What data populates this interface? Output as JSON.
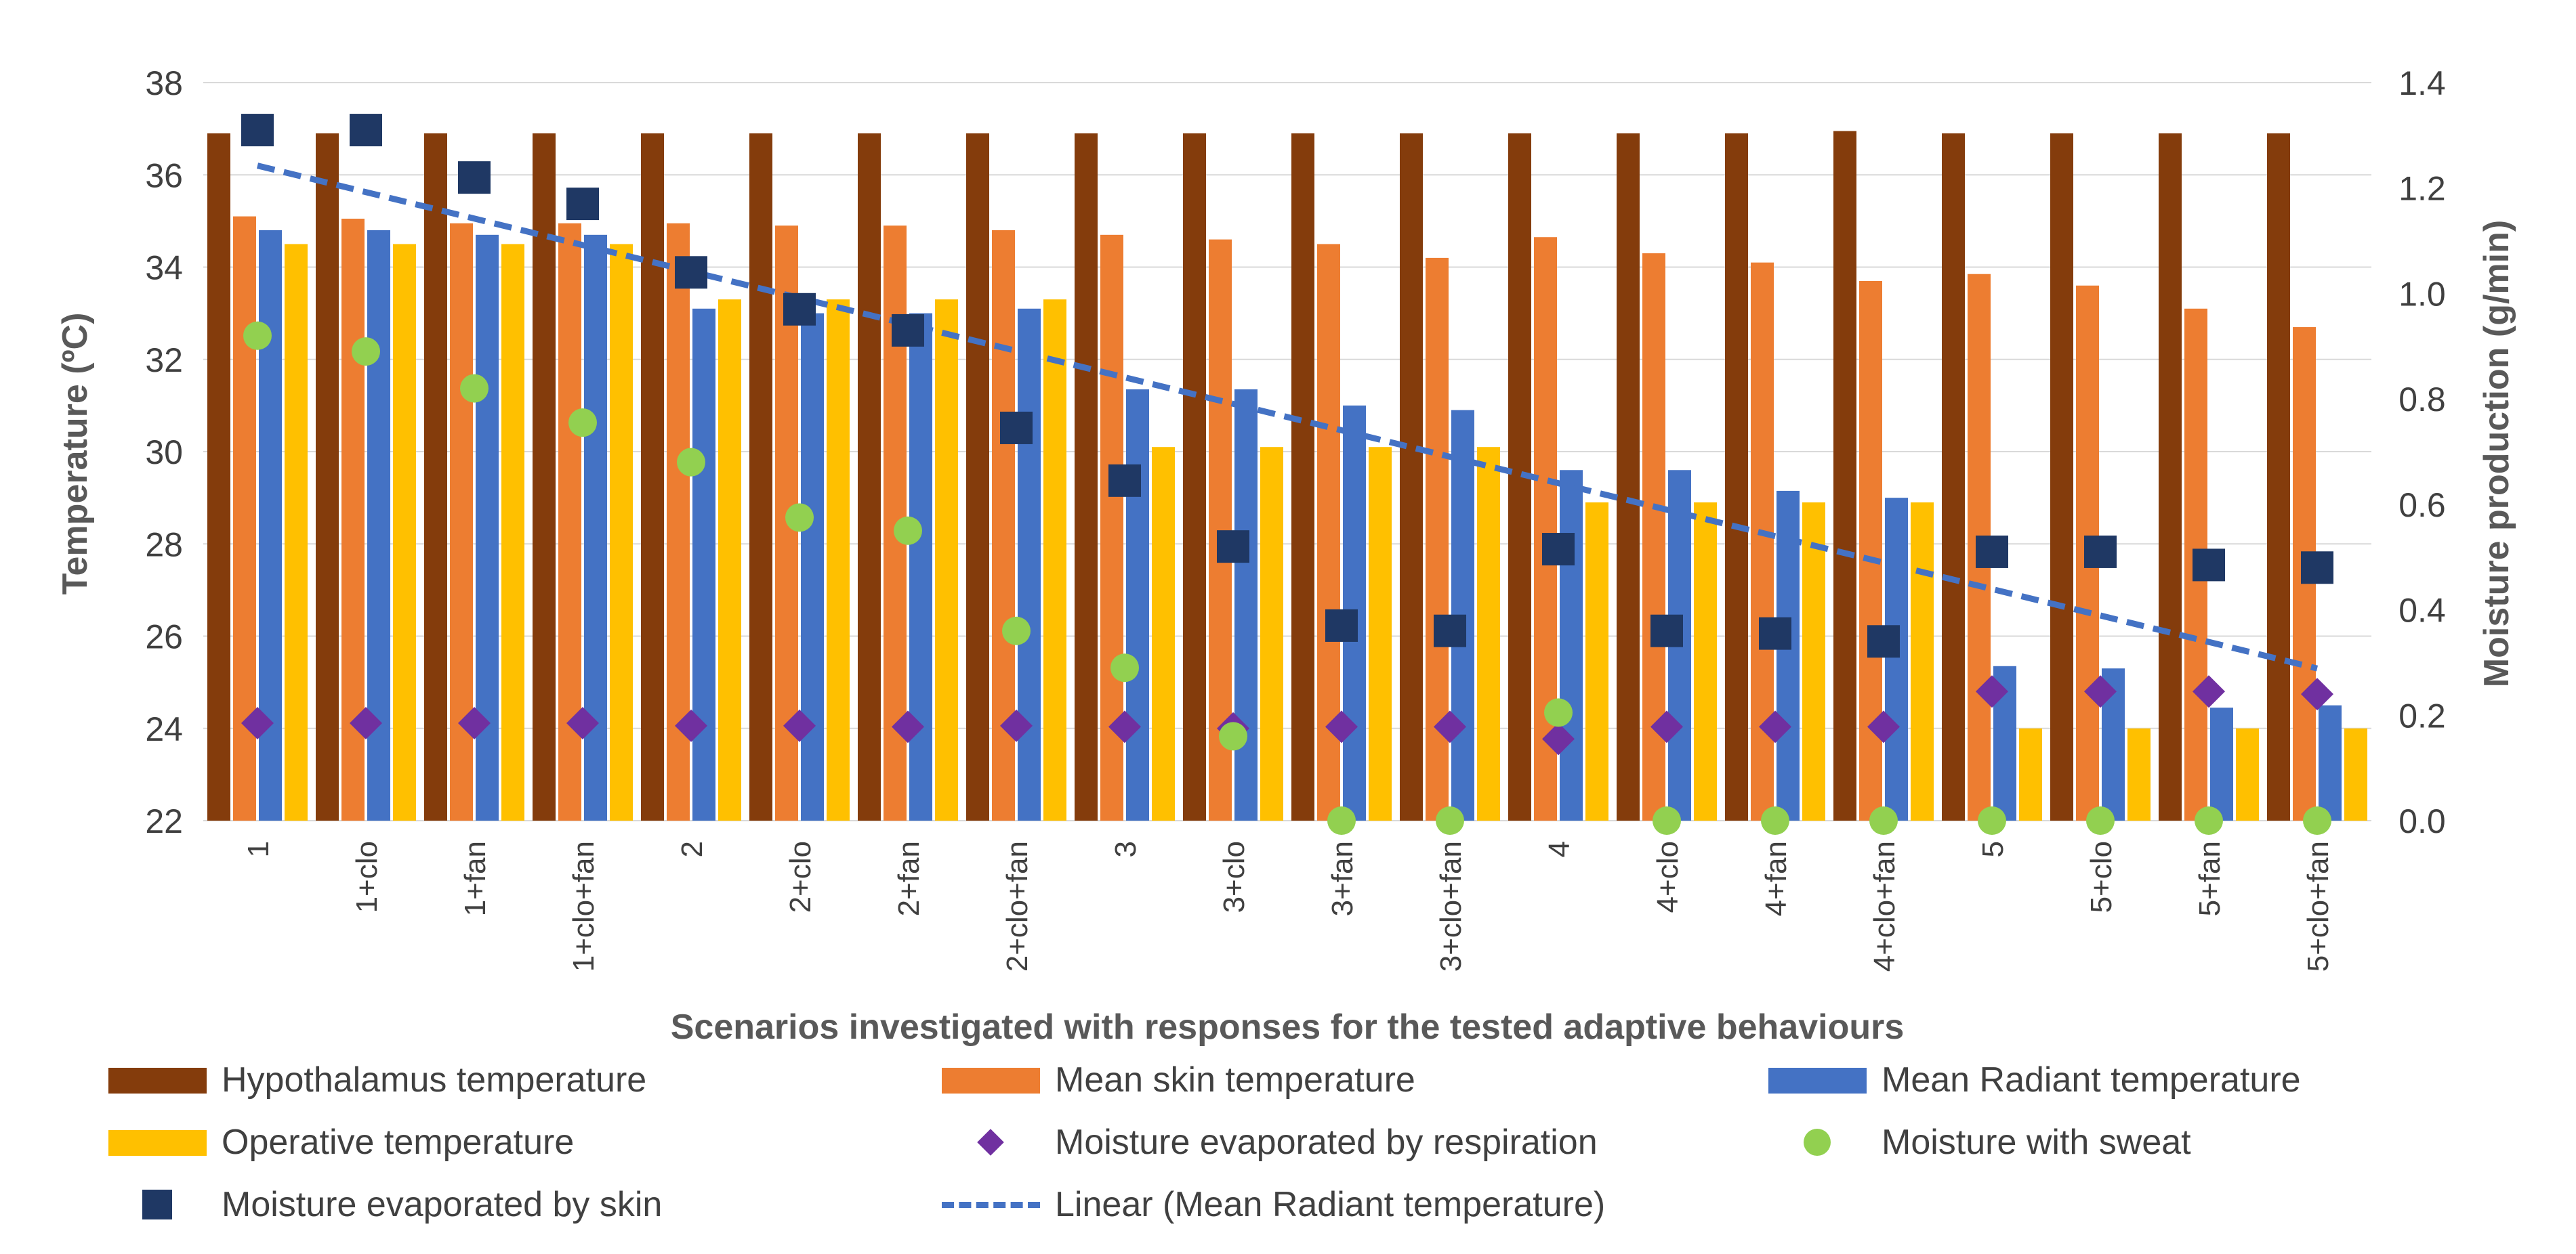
{
  "chart_data": {
    "type": "bar",
    "title": "",
    "xlabel": "Scenarios investigated with responses for the tested adaptive behaviours",
    "ylabel": "Temperature (ºC)",
    "y2label": "Moisture production (g/min)",
    "ylim": [
      22,
      38
    ],
    "yticks": [
      "22",
      "24",
      "26",
      "28",
      "30",
      "32",
      "34",
      "36",
      "38"
    ],
    "y2lim": [
      0,
      1.4
    ],
    "y2ticks": [
      "0.0",
      "0.2",
      "0.4",
      "0.6",
      "0.8",
      "1.0",
      "1.2",
      "1.4"
    ],
    "grid": true,
    "legend_position": "bottom",
    "categories": [
      "1",
      "1+clo",
      "1+fan",
      "1+clo+fan",
      "2",
      "2+clo",
      "2+fan",
      "2+clo+fan",
      "3",
      "3+clo",
      "3+fan",
      "3+clo+fan",
      "4",
      "4+clo",
      "4+fan",
      "4+clo+fan",
      "5",
      "5+clo",
      "5+fan",
      "5+clo+fan"
    ],
    "bar_series": [
      {
        "name": "Hypothalamus temperature",
        "color": "#843C0C",
        "values": [
          36.9,
          36.9,
          36.9,
          36.9,
          36.9,
          36.9,
          36.9,
          36.9,
          36.9,
          36.9,
          36.9,
          36.9,
          36.9,
          36.9,
          36.9,
          36.95,
          36.9,
          36.9,
          36.9,
          36.9
        ]
      },
      {
        "name": "Mean skin temperature",
        "color": "#ED7D31",
        "values": [
          35.1,
          35.05,
          34.95,
          34.95,
          34.95,
          34.9,
          34.9,
          34.8,
          34.7,
          34.6,
          34.5,
          34.2,
          34.65,
          34.3,
          34.1,
          33.7,
          33.85,
          33.6,
          33.1,
          32.7
        ]
      },
      {
        "name": "Mean Radiant temperature",
        "color": "#4472C4",
        "values": [
          34.8,
          34.8,
          34.7,
          34.7,
          33.1,
          33.0,
          33.0,
          33.1,
          31.35,
          31.35,
          31.0,
          30.9,
          29.6,
          29.6,
          29.15,
          29.0,
          25.35,
          25.3,
          24.45,
          24.5
        ]
      },
      {
        "name": "Operative temperature",
        "color": "#FFC000",
        "values": [
          34.5,
          34.5,
          34.5,
          34.5,
          33.3,
          33.3,
          33.3,
          33.3,
          30.1,
          30.1,
          30.1,
          30.1,
          28.9,
          28.9,
          28.9,
          28.9,
          24.0,
          24.0,
          24.0,
          24.0
        ]
      }
    ],
    "marker_series": [
      {
        "name": "Moisture evaporated by respiration",
        "color": "#7030A0",
        "marker": "diamond",
        "axis": "secondary",
        "values": [
          0.185,
          0.185,
          0.185,
          0.185,
          0.18,
          0.18,
          0.178,
          0.18,
          0.178,
          0.175,
          0.178,
          0.178,
          0.155,
          0.178,
          0.178,
          0.178,
          0.245,
          0.245,
          0.245,
          0.24
        ]
      },
      {
        "name": "Moisture with sweat",
        "color": "#92D050",
        "marker": "circle",
        "axis": "secondary",
        "values": [
          0.92,
          0.89,
          0.82,
          0.755,
          0.68,
          0.575,
          0.55,
          0.36,
          0.29,
          0.16,
          0.0,
          0.0,
          0.205,
          0.0,
          0.0,
          0.0,
          0.0,
          0.0,
          0.0,
          0.0
        ]
      },
      {
        "name": "Moisture evaporated by skin",
        "color": "#1F3864",
        "marker": "square",
        "axis": "secondary",
        "values": [
          1.31,
          1.31,
          1.22,
          1.17,
          1.04,
          0.97,
          0.93,
          0.745,
          0.645,
          0.52,
          0.37,
          0.36,
          0.515,
          0.36,
          0.355,
          0.34,
          0.51,
          0.51,
          0.485,
          0.48
        ]
      }
    ],
    "trendline": {
      "name": "Linear (Mean Radiant temperature)",
      "color": "#4472C4",
      "style": "dashed",
      "axis": "primary",
      "start": 36.2,
      "end": 25.3
    }
  }
}
